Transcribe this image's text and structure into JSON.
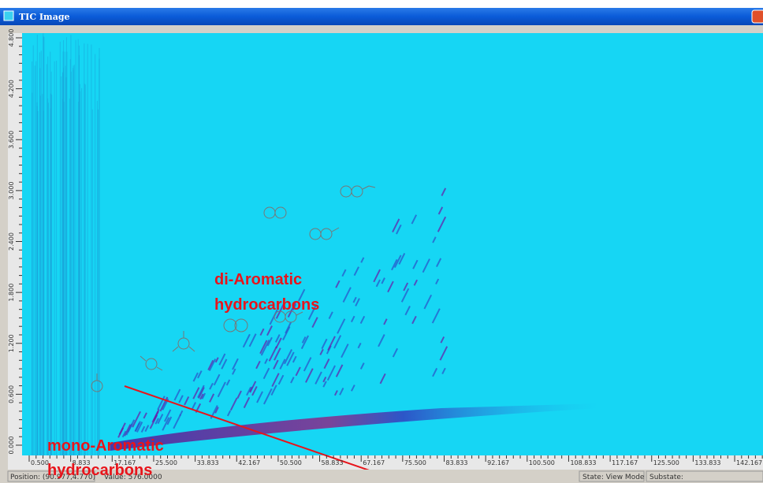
{
  "window": {
    "title": "TIC Image"
  },
  "axes": {
    "y_labels": [
      "0.000",
      "0.600",
      "1.200",
      "1.800",
      "2.400",
      "3.000",
      "3.600",
      "4.200",
      "4.800"
    ],
    "x_labels": [
      "0.500",
      "8.833",
      "17.167",
      "25.500",
      "33.833",
      "42.167",
      "50.500",
      "58.833",
      "67.167",
      "75.500",
      "83.833",
      "92.167",
      "100.500",
      "108.833",
      "117.167",
      "125.500",
      "133.833",
      "142.167"
    ]
  },
  "annotations": [
    {
      "lines": [
        "di-Aromatic",
        "hydrocarbons"
      ]
    },
    {
      "lines": [
        "mono-Aromatic",
        "hydrocarbons"
      ]
    }
  ],
  "status_bar": {
    "position": "Position: (90.977,4.770)",
    "value": "Value: 576.0000",
    "state": "State: View Mode",
    "substate": "Substate:"
  }
}
